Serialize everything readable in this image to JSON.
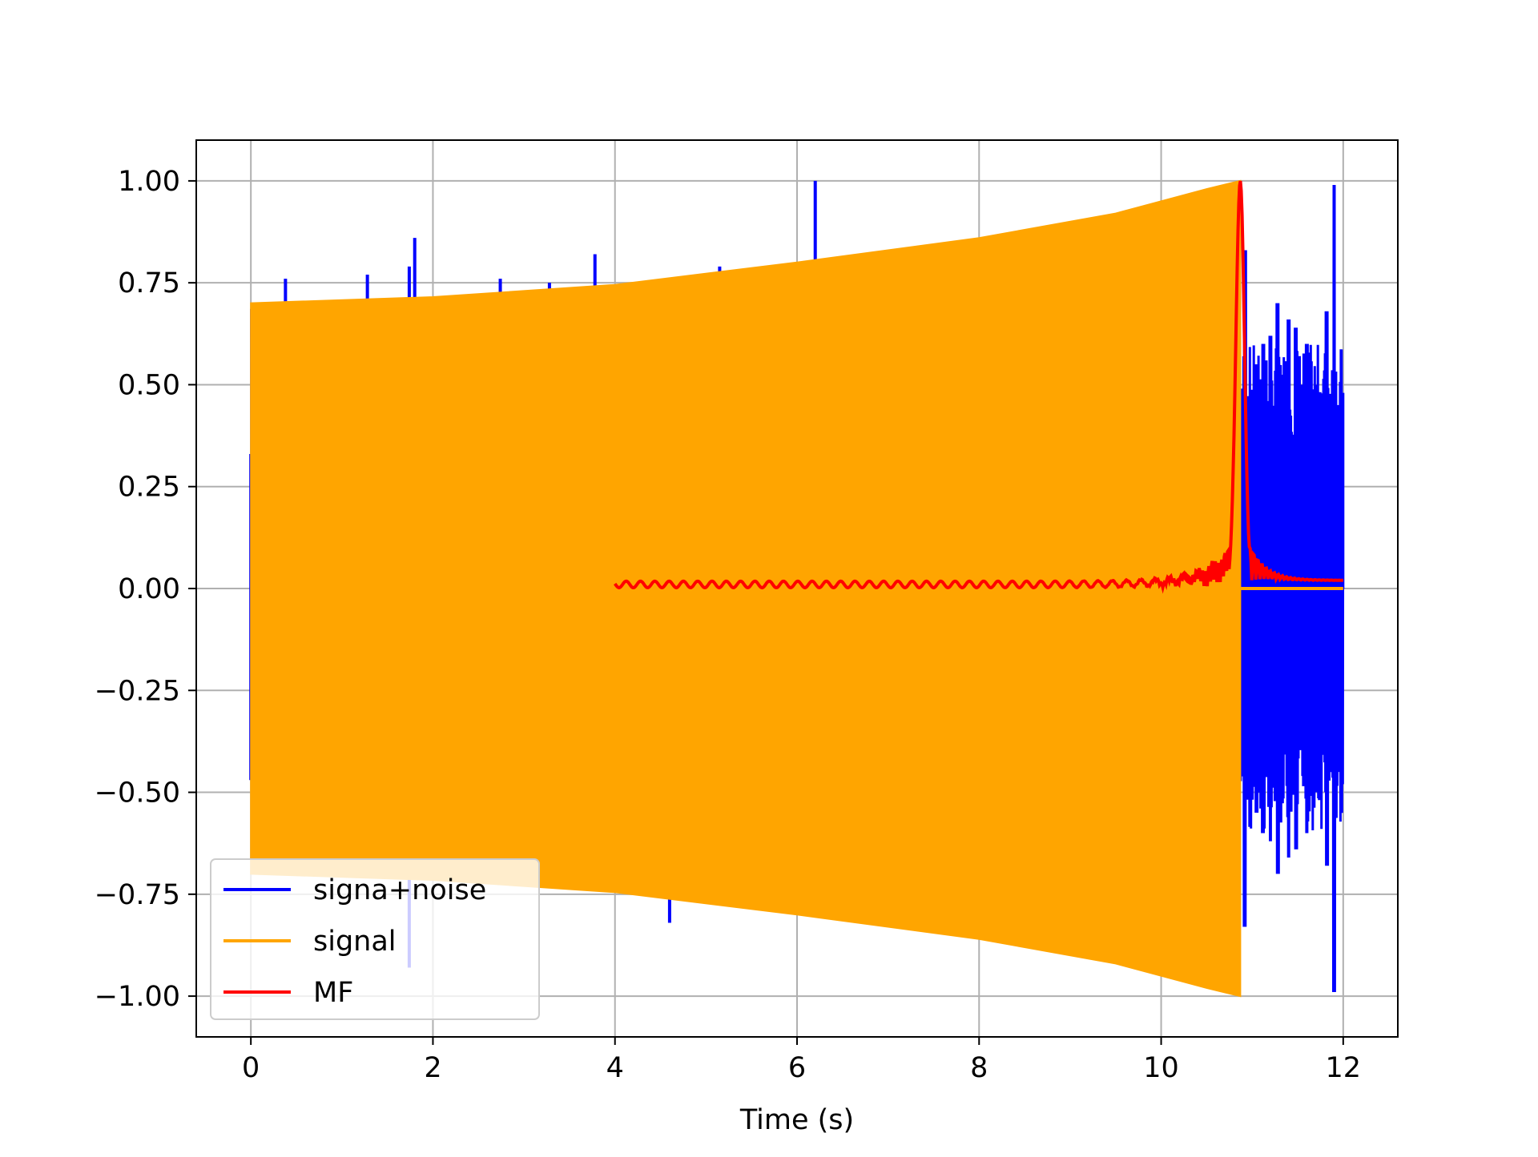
{
  "chart_data": {
    "type": "line",
    "title": "",
    "xlabel": "Time (s)",
    "ylabel": "",
    "xlim": [
      -0.6,
      12.6
    ],
    "ylim": [
      -1.1,
      1.1
    ],
    "grid": true,
    "legend_position": "bottom-left",
    "x_ticks": [
      0,
      2,
      4,
      6,
      8,
      10,
      12
    ],
    "x_tick_labels": [
      "0",
      "2",
      "4",
      "6",
      "8",
      "10",
      "12"
    ],
    "y_ticks": [
      1.0,
      0.75,
      0.5,
      0.25,
      0.0,
      -0.25,
      -0.5,
      -0.75,
      -1.0
    ],
    "y_tick_labels": [
      "1.00",
      "0.75",
      "0.50",
      "0.25",
      "0.00",
      "−0.25",
      "−0.50",
      "−0.75",
      "−1.00"
    ],
    "series": [
      {
        "name": "signa+noise",
        "color": "#0000ff",
        "description_of_shape": "dense oscillation, noisy spikes",
        "spikes": [
          {
            "x": 0.0,
            "y": 0.33
          },
          {
            "x": 0.0,
            "y": -0.47
          },
          {
            "x": 0.38,
            "y": 0.76
          },
          {
            "x": 1.28,
            "y": 0.77
          },
          {
            "x": 1.74,
            "y": 0.79
          },
          {
            "x": 1.8,
            "y": 0.86
          },
          {
            "x": 1.74,
            "y": -0.93
          },
          {
            "x": 2.74,
            "y": 0.76
          },
          {
            "x": 3.28,
            "y": 0.75
          },
          {
            "x": 3.78,
            "y": 0.82
          },
          {
            "x": 4.6,
            "y": -0.82
          },
          {
            "x": 5.15,
            "y": 0.79
          },
          {
            "x": 6.2,
            "y": 1.0
          },
          {
            "x": 5.6,
            "y": -0.79
          }
        ],
        "tail_segment": {
          "x_start": 10.87,
          "x_end": 12.0,
          "peaks": [
            {
              "x": 10.92,
              "y": -0.83
            },
            {
              "x": 11.05,
              "y": 0.55
            },
            {
              "x": 11.12,
              "y": -0.6
            },
            {
              "x": 11.2,
              "y": 0.62
            },
            {
              "x": 11.28,
              "y": -0.7
            },
            {
              "x": 11.4,
              "y": 0.66
            },
            {
              "x": 11.48,
              "y": -0.64
            },
            {
              "x": 11.6,
              "y": 0.6
            },
            {
              "x": 11.7,
              "y": -0.5
            },
            {
              "x": 11.82,
              "y": 0.68
            },
            {
              "x": 11.9,
              "y": 0.99
            },
            {
              "x": 11.95,
              "y": -0.45
            },
            {
              "x": 12.0,
              "y": 0.48
            }
          ]
        }
      },
      {
        "name": "signal",
        "color": "#ffa500",
        "description_of_shape": "dense chirp oscillation filling an expanding envelope",
        "x_start": 0.0,
        "x_end": 10.87,
        "envelope": [
          {
            "x": 0.0,
            "y": 0.7
          },
          {
            "x": 2.0,
            "y": 0.715
          },
          {
            "x": 4.0,
            "y": 0.745
          },
          {
            "x": 6.0,
            "y": 0.8
          },
          {
            "x": 8.0,
            "y": 0.86
          },
          {
            "x": 9.5,
            "y": 0.92
          },
          {
            "x": 10.5,
            "y": 0.98
          },
          {
            "x": 10.87,
            "y": 1.0
          }
        ],
        "after_end_value": 0.0
      },
      {
        "name": "MF",
        "color": "#ff0000",
        "description_of_shape": "near zero from 4 to 10.4 s, sharp peak at about 10.87 s, decays after",
        "x_start": 4.0,
        "x_end": 12.0,
        "peak": {
          "x": 10.87,
          "y": 1.0
        },
        "baseline": 0.01
      }
    ]
  }
}
